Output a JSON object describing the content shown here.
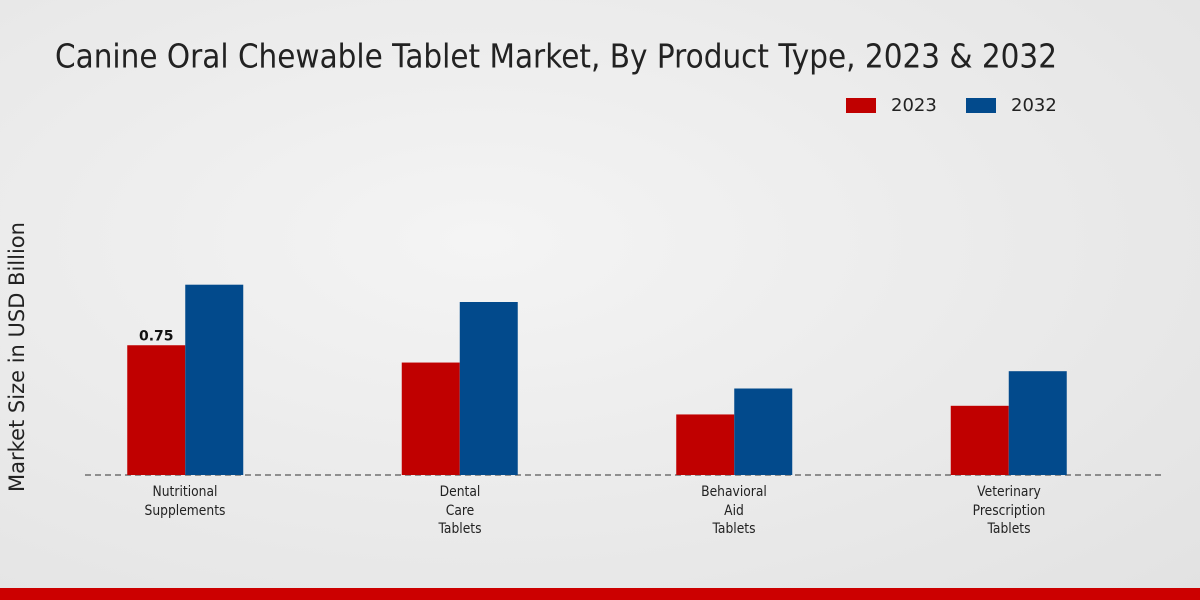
{
  "chart_data": {
    "type": "bar",
    "title": "Canine Oral Chewable Tablet Market, By Product Type, 2023 & 2032",
    "y_label": "Market Size in USD Billion",
    "categories": [
      "Nutritional\nSupplements",
      "Dental\nCare\nTablets",
      "Behavioral\nAid\nTablets",
      "Veterinary\nPrescription\nTablets"
    ],
    "series": [
      {
        "name": "2023",
        "color": "#c00000",
        "values": [
          0.75,
          0.65,
          0.35,
          0.4
        ],
        "value_labels": [
          "0.75",
          null,
          null,
          null
        ]
      },
      {
        "name": "2032",
        "color": "#024a8c",
        "values": [
          1.1,
          1.0,
          0.5,
          0.6
        ]
      }
    ],
    "ylim": [
      0,
      2
    ]
  }
}
